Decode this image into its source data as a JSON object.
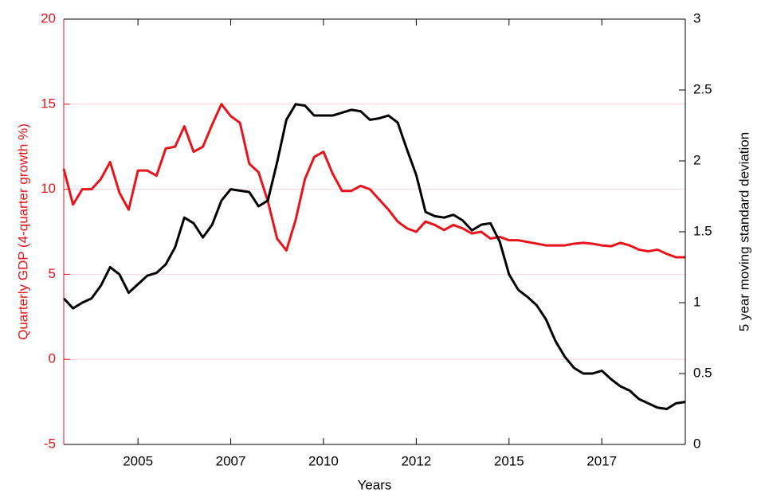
{
  "chart_data": {
    "type": "line",
    "xlabel": "Years",
    "ylabel": "Quarterly GDP (4-quarter growth %)",
    "y2label": "5 year moving standard deviation",
    "yaxis_color": "#e8141b",
    "y2axis_color": "#000000",
    "grid": true,
    "grid_color": "#f6d4d6",
    "xlim": [
      2003,
      2019.75
    ],
    "xticks": [
      2005,
      {
        "value": 2007.5,
        "label": "2007"
      },
      2010,
      {
        "value": 2012.5,
        "label": "2012"
      },
      2015,
      {
        "value": 2017.5,
        "label": "2017"
      }
    ],
    "ylim": [
      -5,
      20
    ],
    "yticks": [
      -5,
      0,
      5,
      10,
      15,
      20
    ],
    "y2lim": [
      0,
      3
    ],
    "y2ticks": [
      0,
      0.5,
      1,
      1.5,
      2,
      2.5,
      3
    ],
    "x": [
      2003,
      2003.25,
      2003.5,
      2003.75,
      2004,
      2004.25,
      2004.5,
      2004.75,
      2005,
      2005.25,
      2005.5,
      2005.75,
      2006,
      2006.25,
      2006.5,
      2006.75,
      2007,
      2007.25,
      2007.5,
      2007.75,
      2008,
      2008.25,
      2008.5,
      2008.75,
      2009,
      2009.25,
      2009.5,
      2009.75,
      2010,
      2010.25,
      2010.5,
      2010.75,
      2011,
      2011.25,
      2011.5,
      2011.75,
      2012,
      2012.25,
      2012.5,
      2012.75,
      2013,
      2013.25,
      2013.5,
      2013.75,
      2014,
      2014.25,
      2014.5,
      2014.75,
      2015,
      2015.25,
      2015.5,
      2015.75,
      2016,
      2016.25,
      2016.5,
      2016.75,
      2017,
      2017.25,
      2017.5,
      2017.75,
      2018,
      2018.25,
      2018.5,
      2018.75,
      2019,
      2019.25,
      2019.5,
      2019.75
    ],
    "series": [
      {
        "color": "#e8141b",
        "axis": "y",
        "values": [
          11.2,
          9.1,
          10.0,
          10.0,
          10.6,
          11.6,
          9.8,
          8.8,
          11.1,
          11.1,
          10.8,
          12.4,
          12.5,
          13.7,
          12.2,
          12.5,
          13.8,
          15.0,
          14.3,
          13.9,
          11.5,
          11.0,
          9.3,
          7.1,
          6.4,
          8.2,
          10.6,
          11.9,
          12.2,
          10.9,
          9.9,
          9.9,
          10.2,
          10.0,
          9.4,
          8.8,
          8.1,
          7.7,
          7.5,
          8.1,
          7.9,
          7.6,
          7.9,
          7.7,
          7.4,
          7.5,
          7.1,
          7.2,
          7.0,
          7.0,
          6.9,
          6.8,
          6.7,
          6.7,
          6.7,
          6.8,
          6.85,
          6.8,
          6.7,
          6.65,
          6.85,
          6.7,
          6.45,
          6.35,
          6.45,
          6.2,
          6.0,
          6.0
        ]
      },
      {
        "color": "#000000",
        "axis": "y2",
        "values": [
          1.03,
          0.96,
          1.0,
          1.03,
          1.12,
          1.25,
          1.2,
          1.07,
          1.13,
          1.19,
          1.21,
          1.27,
          1.39,
          1.6,
          1.56,
          1.46,
          1.55,
          1.72,
          1.8,
          1.79,
          1.78,
          1.68,
          1.72,
          1.99,
          2.29,
          2.4,
          2.39,
          2.32,
          2.32,
          2.32,
          2.34,
          2.36,
          2.35,
          2.29,
          2.3,
          2.32,
          2.27,
          2.08,
          1.9,
          1.64,
          1.61,
          1.6,
          1.62,
          1.58,
          1.51,
          1.55,
          1.56,
          1.43,
          1.2,
          1.09,
          1.04,
          0.98,
          0.88,
          0.73,
          0.62,
          0.54,
          0.5,
          0.5,
          0.52,
          0.46,
          0.41,
          0.38,
          0.32,
          0.29,
          0.26,
          0.25,
          0.29,
          0.3
        ]
      }
    ]
  }
}
